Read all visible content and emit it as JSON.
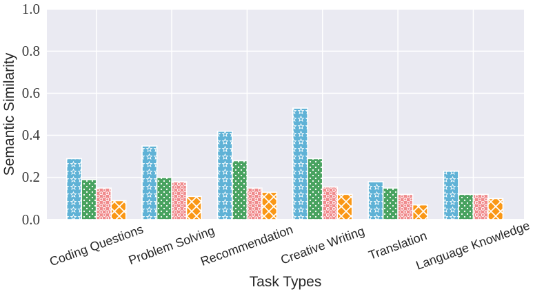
{
  "chart_data": {
    "type": "bar",
    "title": "",
    "xlabel": "Task Types",
    "ylabel": "Semantic Similarity",
    "ylim": [
      0.0,
      1.0
    ],
    "yticks": [
      0.0,
      0.2,
      0.4,
      0.6,
      0.8,
      1.0
    ],
    "ytick_labels": [
      "0.0",
      "0.2",
      "0.4",
      "0.6",
      "0.8",
      "1.0"
    ],
    "categories": [
      "Coding Questions",
      "Problem Solving",
      "Recommendation",
      "Creative Writing",
      "Translation",
      "Language Knowledge"
    ],
    "series": [
      {
        "name": "",
        "pattern": "stars",
        "color": "#5FB2D6",
        "values": [
          0.29,
          0.35,
          0.42,
          0.53,
          0.18,
          0.23
        ]
      },
      {
        "name": "",
        "pattern": "dots",
        "color": "#48A25F",
        "values": [
          0.19,
          0.2,
          0.28,
          0.29,
          0.15,
          0.12
        ]
      },
      {
        "name": "",
        "pattern": "circles",
        "color": "#F08A8C",
        "values": [
          0.15,
          0.18,
          0.15,
          0.155,
          0.12,
          0.12
        ]
      },
      {
        "name": "",
        "pattern": "crosshatch",
        "color": "#FA9715",
        "values": [
          0.09,
          0.11,
          0.13,
          0.12,
          0.07,
          0.1
        ]
      }
    ],
    "legend": "none",
    "grid": true,
    "plot_background": "#EAEAF2",
    "grid_color": "#FFFFFF",
    "bar_edge_color": "#FFFFFF",
    "text_color": "#262626"
  }
}
